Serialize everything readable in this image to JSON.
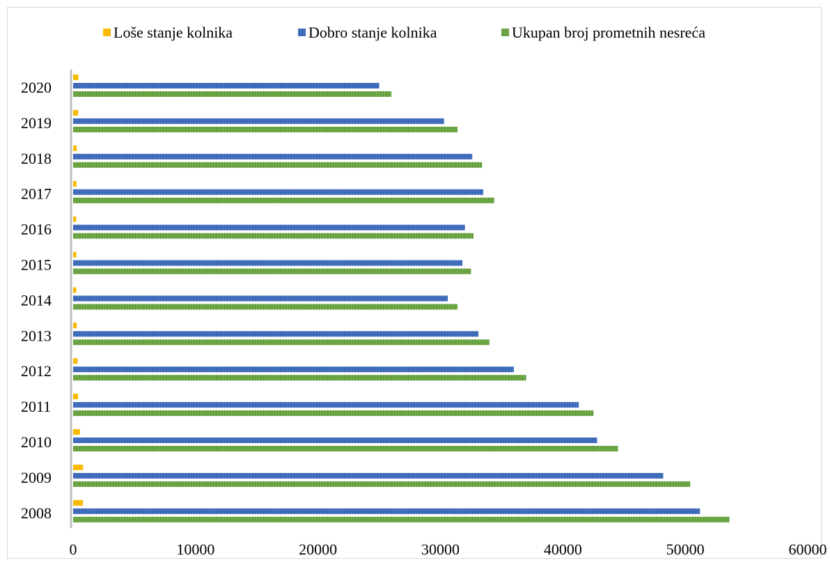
{
  "chart_data": {
    "type": "bar",
    "orientation": "horizontal",
    "categories": [
      "2020",
      "2019",
      "2018",
      "2017",
      "2016",
      "2015",
      "2014",
      "2013",
      "2012",
      "2011",
      "2010",
      "2009",
      "2008"
    ],
    "series": [
      {
        "name": "Loše stanje kolnika",
        "color": "#ffc000",
        "values": [
          420,
          410,
          300,
          280,
          250,
          260,
          260,
          300,
          360,
          400,
          560,
          810,
          800
        ]
      },
      {
        "name": "Dobro stanje kolnika",
        "color": "#4472c4",
        "values": [
          25000,
          30300,
          32600,
          33500,
          32000,
          31800,
          30600,
          33100,
          36000,
          41300,
          42800,
          48200,
          51200
        ]
      },
      {
        "name": "Ukupan broj prometnih nesreća",
        "color": "#70ad47",
        "values": [
          26000,
          31400,
          33400,
          34400,
          32700,
          32500,
          31400,
          34000,
          37000,
          42500,
          44500,
          50400,
          53600
        ]
      }
    ],
    "x_ticks": [
      "0",
      "10000",
      "20000",
      "30000",
      "40000",
      "50000",
      "60000"
    ],
    "xlim": [
      0,
      60000
    ],
    "legend_position": "top",
    "grid": false,
    "title": "",
    "xlabel": "",
    "ylabel": ""
  }
}
